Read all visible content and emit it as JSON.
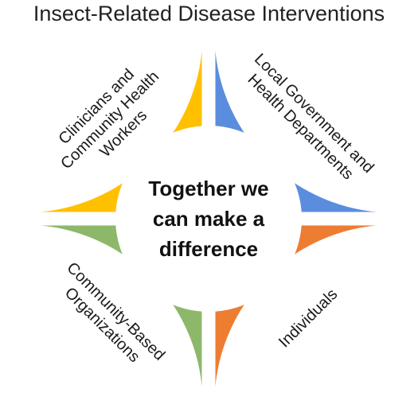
{
  "title": "Insect-Related Disease Interventions",
  "center_text": [
    "Together we",
    "can make a",
    "difference"
  ],
  "segments": [
    {
      "lines": [
        "Clinicians and",
        "Community Health",
        "Workers"
      ],
      "color": "#FFC000"
    },
    {
      "lines": [
        "Local Government and",
        "Health Departments"
      ],
      "color": "#5B8DDE"
    },
    {
      "lines": [
        "Community-Based",
        "Organizations"
      ],
      "color": "#8DB86A"
    },
    {
      "lines": [
        "Individuals"
      ],
      "color": "#ED7D31"
    }
  ]
}
